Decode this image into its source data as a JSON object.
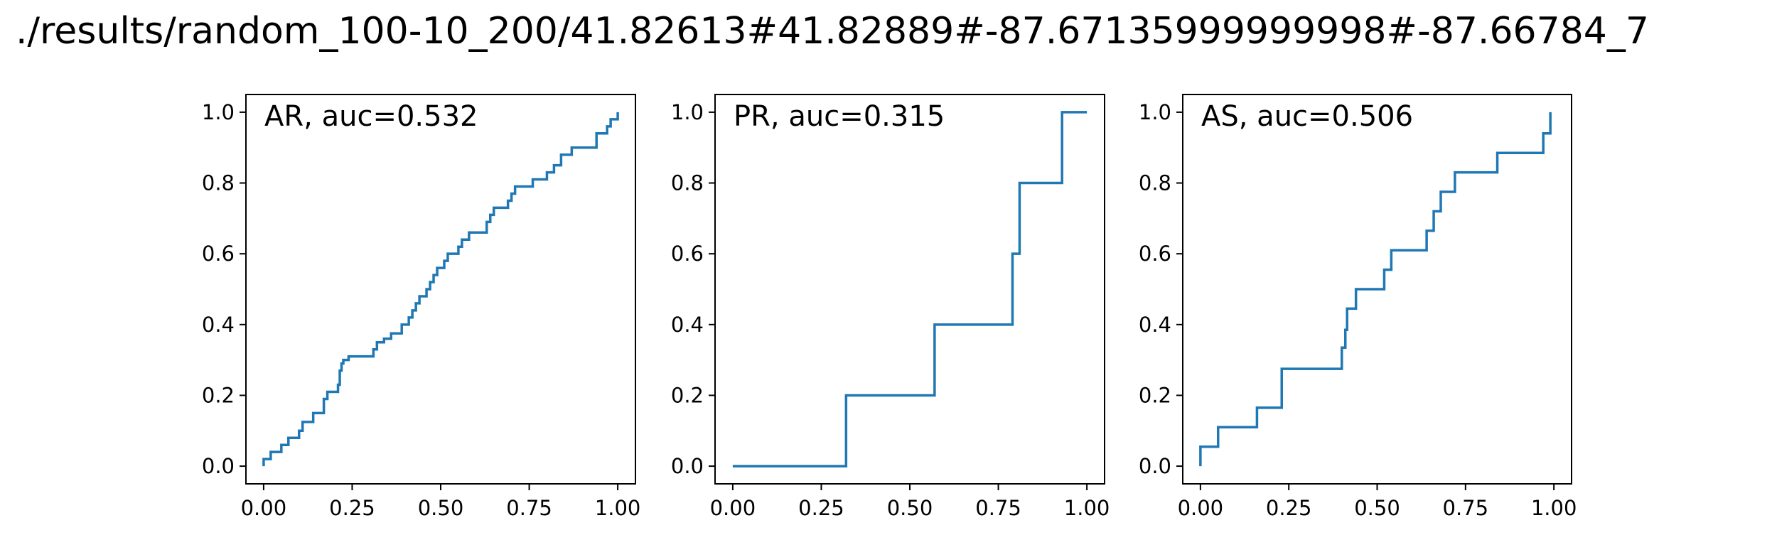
{
  "figure": {
    "title": "./results/random_100-10_200/41.82613#41.82889#-87.67135999999998#-87.66784_7"
  },
  "chart_data": [
    {
      "type": "line",
      "step": "post",
      "label": "AR, auc=0.532",
      "color": "#1f77b4",
      "xlim": [
        -0.05,
        1.05
      ],
      "ylim": [
        -0.05,
        1.05
      ],
      "xticks": [
        "0.00",
        "0.25",
        "0.50",
        "0.75",
        "1.00"
      ],
      "yticks": [
        "0.0",
        "0.2",
        "0.4",
        "0.6",
        "0.8",
        "1.0"
      ],
      "legend_position": "top-left",
      "x": [
        0.0,
        0.0,
        0.02,
        0.05,
        0.07,
        0.1,
        0.11,
        0.14,
        0.17,
        0.18,
        0.21,
        0.215,
        0.22,
        0.225,
        0.24,
        0.31,
        0.32,
        0.34,
        0.36,
        0.39,
        0.41,
        0.42,
        0.43,
        0.44,
        0.46,
        0.47,
        0.48,
        0.49,
        0.51,
        0.52,
        0.55,
        0.56,
        0.58,
        0.63,
        0.64,
        0.65,
        0.69,
        0.7,
        0.71,
        0.76,
        0.8,
        0.82,
        0.84,
        0.87,
        0.94,
        0.97,
        0.98,
        1.0
      ],
      "y": [
        0.0,
        0.02,
        0.04,
        0.06,
        0.08,
        0.1,
        0.125,
        0.15,
        0.19,
        0.21,
        0.23,
        0.27,
        0.29,
        0.3,
        0.31,
        0.33,
        0.35,
        0.36,
        0.375,
        0.4,
        0.42,
        0.44,
        0.46,
        0.48,
        0.5,
        0.52,
        0.54,
        0.56,
        0.58,
        0.6,
        0.62,
        0.64,
        0.66,
        0.69,
        0.71,
        0.73,
        0.75,
        0.77,
        0.79,
        0.81,
        0.83,
        0.85,
        0.88,
        0.9,
        0.94,
        0.96,
        0.98,
        1.0
      ]
    },
    {
      "type": "line",
      "step": "post",
      "label": "PR, auc=0.315",
      "color": "#1f77b4",
      "xlim": [
        -0.05,
        1.05
      ],
      "ylim": [
        -0.05,
        1.05
      ],
      "xticks": [
        "0.00",
        "0.25",
        "0.50",
        "0.75",
        "1.00"
      ],
      "yticks": [
        "0.0",
        "0.2",
        "0.4",
        "0.6",
        "0.8",
        "1.0"
      ],
      "legend_position": "top-left",
      "x": [
        0.0,
        0.32,
        0.57,
        0.79,
        0.81,
        0.93,
        1.0
      ],
      "y": [
        0.0,
        0.2,
        0.4,
        0.6,
        0.8,
        1.0,
        1.0
      ]
    },
    {
      "type": "line",
      "step": "post",
      "label": "AS, auc=0.506",
      "color": "#1f77b4",
      "xlim": [
        -0.05,
        1.05
      ],
      "ylim": [
        -0.05,
        1.05
      ],
      "xticks": [
        "0.00",
        "0.25",
        "0.50",
        "0.75",
        "1.00"
      ],
      "yticks": [
        "0.0",
        "0.2",
        "0.4",
        "0.6",
        "0.8",
        "1.0"
      ],
      "legend_position": "top-left",
      "x": [
        0.0,
        0.0,
        0.05,
        0.16,
        0.23,
        0.4,
        0.41,
        0.415,
        0.44,
        0.52,
        0.54,
        0.64,
        0.66,
        0.68,
        0.72,
        0.84,
        0.97,
        0.99
      ],
      "y": [
        0.0,
        0.055,
        0.11,
        0.165,
        0.275,
        0.335,
        0.385,
        0.445,
        0.5,
        0.555,
        0.61,
        0.665,
        0.72,
        0.775,
        0.83,
        0.885,
        0.94,
        1.0
      ]
    }
  ]
}
